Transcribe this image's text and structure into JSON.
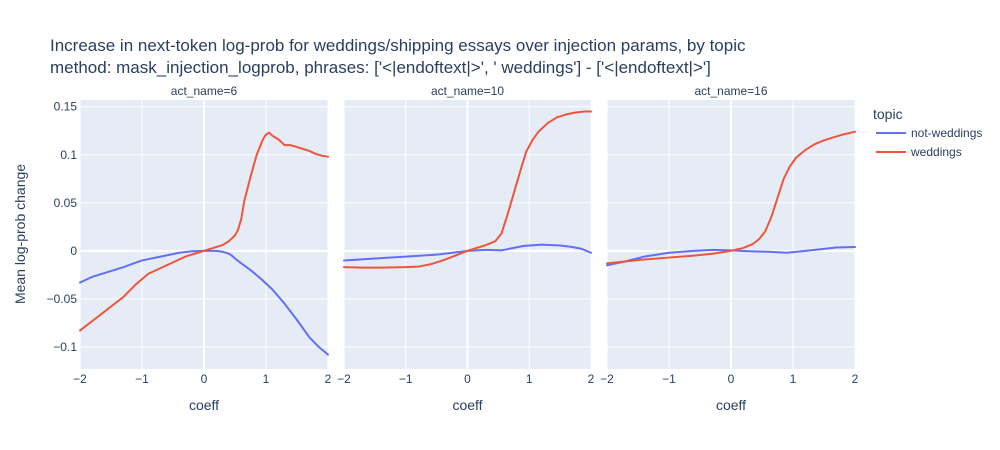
{
  "chart_data": {
    "type": "line",
    "title_line1": "Increase in next-token log-prob for weddings/shipping essays over injection params, by topic",
    "title_line2": "method: mask_injection_logprob, phrases: ['<|endoftext|>', ' weddings'] - ['<|endoftext|>']",
    "xlabel": "coeff",
    "ylabel": "Mean log-prob change",
    "xlim": [
      -2,
      2
    ],
    "ylim": [
      -0.123,
      0.157
    ],
    "x_ticks": [
      -2,
      -1,
      0,
      1,
      2
    ],
    "x_tick_labels": [
      "−2",
      "−1",
      "0",
      "1",
      "2"
    ],
    "y_ticks": [
      -0.1,
      -0.05,
      0,
      0.05,
      0.1,
      0.15
    ],
    "y_tick_labels": [
      "−0.1",
      "−0.05",
      "0",
      "0.05",
      "0.1",
      "0.15"
    ],
    "grid": true,
    "legend": {
      "title": "topic",
      "placement": "right",
      "entries": [
        {
          "name": "not-weddings",
          "color": "#636efa"
        },
        {
          "name": "weddings",
          "color": "#ef553b"
        }
      ]
    },
    "facets": [
      {
        "title": "act_name=6",
        "series": [
          {
            "name": "not-weddings",
            "color": "#636efa",
            "x": [
              -2,
              -1.8,
              -1.6,
              -1.3,
              -1,
              -0.7,
              -0.4,
              -0.2,
              0,
              0.2,
              0.3,
              0.4,
              0.45,
              0.5,
              0.6,
              0.75,
              0.9,
              1.1,
              1.3,
              1.5,
              1.7,
              1.85,
              2
            ],
            "y": [
              -0.033,
              -0.027,
              -0.023,
              -0.017,
              -0.01,
              -0.006,
              -0.002,
              -0.0005,
              0,
              0,
              -0.001,
              -0.003,
              -0.005,
              -0.008,
              -0.013,
              -0.02,
              -0.028,
              -0.04,
              -0.055,
              -0.072,
              -0.09,
              -0.1,
              -0.108
            ]
          },
          {
            "name": "weddings",
            "color": "#ef553b",
            "x": [
              -2,
              -1.8,
              -1.6,
              -1.3,
              -1.1,
              -0.9,
              -0.7,
              -0.5,
              -0.3,
              -0.1,
              0,
              0.15,
              0.3,
              0.4,
              0.5,
              0.55,
              0.6,
              0.65,
              0.75,
              0.85,
              0.95,
              1.0,
              1.05,
              1.1,
              1.2,
              1.3,
              1.4,
              1.5,
              1.6,
              1.7,
              1.8,
              1.9,
              2
            ],
            "y": [
              -0.083,
              -0.073,
              -0.063,
              -0.048,
              -0.035,
              -0.024,
              -0.018,
              -0.012,
              -0.006,
              -0.002,
              0,
              0.003,
              0.006,
              0.01,
              0.016,
              0.022,
              0.033,
              0.052,
              0.077,
              0.1,
              0.116,
              0.121,
              0.123,
              0.12,
              0.116,
              0.11,
              0.11,
              0.108,
              0.106,
              0.104,
              0.101,
              0.099,
              0.098
            ]
          }
        ]
      },
      {
        "title": "act_name=10",
        "series": [
          {
            "name": "not-weddings",
            "color": "#636efa",
            "x": [
              -2,
              -1.5,
              -1,
              -0.5,
              0,
              0.3,
              0.55,
              0.9,
              1.2,
              1.5,
              1.7,
              1.85,
              2
            ],
            "y": [
              -0.01,
              -0.008,
              -0.006,
              -0.004,
              0,
              0.001,
              0.0005,
              0.005,
              0.0065,
              0.0055,
              0.004,
              0.002,
              -0.002
            ]
          },
          {
            "name": "weddings",
            "color": "#ef553b",
            "x": [
              -2,
              -1.7,
              -1.4,
              -1,
              -0.8,
              -0.6,
              -0.4,
              -0.2,
              0,
              0.2,
              0.3,
              0.45,
              0.55,
              0.65,
              0.75,
              0.85,
              0.95,
              1.05,
              1.15,
              1.3,
              1.45,
              1.6,
              1.75,
              1.9,
              2
            ],
            "y": [
              -0.017,
              -0.0175,
              -0.0175,
              -0.017,
              -0.0165,
              -0.014,
              -0.01,
              -0.005,
              0,
              0.004,
              0.006,
              0.01,
              0.018,
              0.038,
              0.06,
              0.082,
              0.103,
              0.115,
              0.124,
              0.133,
              0.139,
              0.142,
              0.144,
              0.145,
              0.145
            ]
          }
        ]
      },
      {
        "title": "act_name=16",
        "series": [
          {
            "name": "not-weddings",
            "color": "#636efa",
            "x": [
              -2,
              -1.7,
              -1.4,
              -1,
              -0.6,
              -0.3,
              0,
              0.3,
              0.6,
              0.9,
              1.2,
              1.5,
              1.7,
              2
            ],
            "y": [
              -0.015,
              -0.011,
              -0.006,
              -0.002,
              0,
              0.001,
              0.0005,
              -0.0005,
              -0.001,
              -0.002,
              0,
              0.002,
              0.0035,
              0.004
            ]
          },
          {
            "name": "weddings",
            "color": "#ef553b",
            "x": [
              -2,
              -1.7,
              -1.4,
              -1,
              -0.6,
              -0.3,
              0,
              0.2,
              0.35,
              0.45,
              0.55,
              0.65,
              0.75,
              0.85,
              0.95,
              1.05,
              1.2,
              1.35,
              1.5,
              1.65,
              1.8,
              2
            ],
            "y": [
              -0.013,
              -0.011,
              -0.009,
              -0.007,
              -0.005,
              -0.003,
              0,
              0.003,
              0.007,
              0.012,
              0.02,
              0.035,
              0.055,
              0.075,
              0.088,
              0.097,
              0.105,
              0.111,
              0.115,
              0.118,
              0.121,
              0.124
            ]
          }
        ]
      }
    ]
  }
}
